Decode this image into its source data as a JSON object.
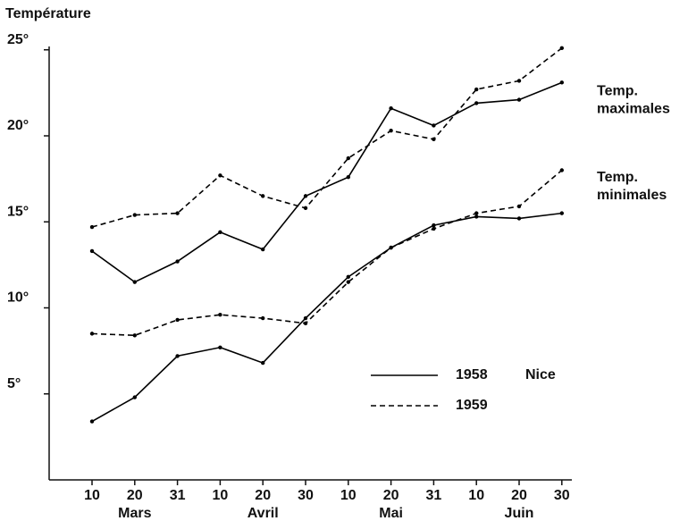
{
  "chart_data": {
    "type": "line",
    "title": "Température",
    "categories": [
      "10",
      "20",
      "31",
      "10",
      "20",
      "30",
      "10",
      "20",
      "31",
      "10",
      "20",
      "30"
    ],
    "months": [
      "Mars",
      "Avril",
      "Mai",
      "Juin"
    ],
    "location": "Nice",
    "annotations": [
      [
        "Temp.",
        "maximales"
      ],
      [
        "Temp.",
        "minimales"
      ]
    ],
    "series": [
      {
        "name": "1958",
        "color": "#000000",
        "dashed": false,
        "values": [
          13.3,
          11.5,
          12.7,
          14.4,
          13.4,
          16.5,
          17.6,
          21.6,
          20.6,
          21.9,
          22.1,
          23.1
        ]
      },
      {
        "name": "1959",
        "color": "#000000",
        "dashed": true,
        "values": [
          14.7,
          15.4,
          15.5,
          17.7,
          16.5,
          15.8,
          18.7,
          20.3,
          19.8,
          22.7,
          23.2,
          25.1
        ]
      },
      {
        "name": "1958",
        "color": "#000000",
        "dashed": false,
        "values": [
          3.4,
          4.8,
          7.2,
          7.7,
          6.8,
          9.4,
          11.8,
          13.5,
          14.8,
          15.3,
          15.2,
          15.5
        ]
      },
      {
        "name": "1959",
        "color": "#000000",
        "dashed": true,
        "values": [
          8.5,
          8.4,
          9.3,
          9.6,
          9.4,
          9.1,
          11.5,
          13.5,
          14.6,
          15.5,
          15.9,
          18.0
        ]
      }
    ],
    "ylim": [
      0,
      26
    ],
    "yticks": [
      {
        "value": 5,
        "label": "5°"
      },
      {
        "value": 10,
        "label": "10°"
      },
      {
        "value": 15,
        "label": "15°"
      },
      {
        "value": 20,
        "label": "20°"
      },
      {
        "value": 25,
        "label": "25°"
      }
    ],
    "grid": false
  }
}
